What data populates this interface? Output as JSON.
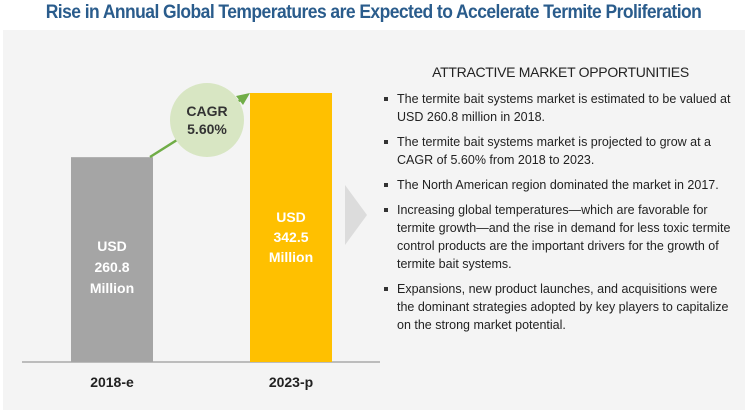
{
  "title": "Rise in Annual Global Temperatures are Expected to Accelerate Termite Proliferation",
  "chart_data": {
    "type": "bar",
    "categories": [
      "2018-e",
      "2023-p"
    ],
    "values": [
      260.8,
      342.5
    ],
    "data_labels": [
      [
        "USD",
        "260.8",
        "Million"
      ],
      [
        "USD",
        "342.5",
        "Million"
      ]
    ],
    "colors": [
      "#a5a5a5",
      "#ffc000"
    ],
    "annotation": {
      "line1": "CAGR",
      "line2": "5.60%"
    },
    "ylim": [
      0,
      342.5
    ]
  },
  "panel": {
    "heading": "ATTRACTIVE MARKET OPPORTUNITIES",
    "bullets": [
      "The termite bait systems market is estimated to be valued at USD 260.8 million in 2018.",
      "The termite bait systems market is projected to grow at a CAGR of 5.60% from 2018 to 2023.",
      "The North American region dominated the market in 2017.",
      "Increasing global temperatures—which are favorable for termite growth—and the rise in demand for less toxic termite control products are the important drivers for the growth of termite bait systems.",
      "Expansions, new product launches, and acquisitions were the dominant strategies adopted by key players to capitalize on the strong market potential."
    ]
  }
}
